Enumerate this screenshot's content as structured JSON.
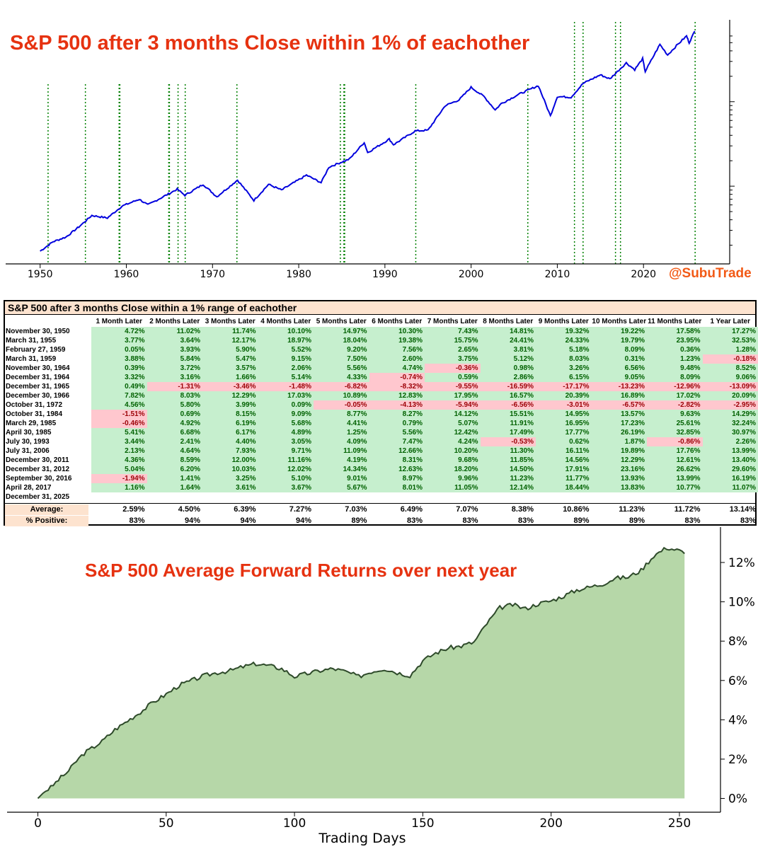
{
  "chart_data": [
    {
      "type": "line",
      "title": "S&P 500 after 3 months Close within 1% of eachother",
      "watermark": "@SubuTrade",
      "x_ticks": [
        1950,
        1960,
        1970,
        1980,
        1990,
        2000,
        2010,
        2020
      ],
      "xlim": [
        1946,
        2030
      ],
      "y_scale": "log",
      "line_color": "#0000dd",
      "vline_color": "#008000",
      "series": [
        {
          "points": [
            [
              1950.0,
              17
            ],
            [
              1951.5,
              22
            ],
            [
              1953,
              25
            ],
            [
              1954.5,
              33
            ],
            [
              1956,
              45
            ],
            [
              1957.8,
              42
            ],
            [
              1959.5,
              58
            ],
            [
              1961.5,
              70
            ],
            [
              1962.5,
              60
            ],
            [
              1965.9,
              92
            ],
            [
              1966.8,
              78
            ],
            [
              1968.9,
              105
            ],
            [
              1970.5,
              75
            ],
            [
              1972.9,
              118
            ],
            [
              1974.8,
              68
            ],
            [
              1976.5,
              105
            ],
            [
              1978,
              90
            ],
            [
              1980.9,
              135
            ],
            [
              1982.6,
              110
            ],
            [
              1983.5,
              168
            ],
            [
              1985.9,
              210
            ],
            [
              1987.6,
              330
            ],
            [
              1988,
              250
            ],
            [
              1990.5,
              360
            ],
            [
              1991,
              310
            ],
            [
              1993.5,
              450
            ],
            [
              1995,
              460
            ],
            [
              1997,
              900
            ],
            [
              1998.6,
              1050
            ],
            [
              2000.0,
              1480
            ],
            [
              2001.5,
              1150
            ],
            [
              2002.8,
              800
            ],
            [
              2003.5,
              950
            ],
            [
              2005.5,
              1220
            ],
            [
              2007.8,
              1550
            ],
            [
              2009.2,
              680
            ],
            [
              2010,
              1150
            ],
            [
              2011.6,
              1130
            ],
            [
              2013,
              1650
            ],
            [
              2015,
              2080
            ],
            [
              2016.1,
              1860
            ],
            [
              2018,
              2880
            ],
            [
              2018.98,
              2400
            ],
            [
              2019.9,
              3230
            ],
            [
              2020.2,
              2280
            ],
            [
              2021.9,
              4770
            ],
            [
              2022.8,
              3580
            ],
            [
              2024,
              4800
            ],
            [
              2025.0,
              6000
            ],
            [
              2025.3,
              5000
            ],
            [
              2025.95,
              6850
            ]
          ]
        }
      ],
      "vline_dates": [
        1950.92,
        1955.25,
        1959.16,
        1959.25,
        1964.92,
        1965.0,
        1966.0,
        1966.83,
        1972.83,
        1984.83,
        1985.24,
        1985.33,
        1993.58,
        2006.58,
        2011.99,
        2012.99,
        2016.75,
        2017.33,
        2025.99
      ]
    },
    {
      "type": "table",
      "title": "S&P 500 after 3 months Close within a 1% range of eachother",
      "columns": [
        "1 Month Later",
        "2 Months Later",
        "3 Months Later",
        "4 Months Later",
        "5 Months Later",
        "6 Months Later",
        "7 Months Later",
        "8 Months Later",
        "9 Months Later",
        "10 Months Later",
        "11 Months Later",
        "1 Year Later"
      ],
      "rows": [
        {
          "date": "November 30, 1950",
          "values": [
            "4.72%",
            "11.02%",
            "11.74%",
            "10.10%",
            "14.97%",
            "10.30%",
            "7.43%",
            "14.81%",
            "19.32%",
            "19.22%",
            "17.58%",
            "17.27%"
          ]
        },
        {
          "date": "March 31, 1955",
          "values": [
            "3.77%",
            "3.64%",
            "12.17%",
            "18.97%",
            "18.04%",
            "19.38%",
            "15.75%",
            "24.41%",
            "24.33%",
            "19.79%",
            "23.95%",
            "32.53%"
          ]
        },
        {
          "date": "February 27, 1959",
          "values": [
            "0.05%",
            "3.93%",
            "5.90%",
            "5.52%",
            "9.20%",
            "7.56%",
            "2.65%",
            "3.81%",
            "5.18%",
            "8.09%",
            "0.36%",
            "1.28%"
          ]
        },
        {
          "date": "March 31, 1959",
          "values": [
            "3.88%",
            "5.84%",
            "5.47%",
            "9.15%",
            "7.50%",
            "2.60%",
            "3.75%",
            "5.12%",
            "8.03%",
            "0.31%",
            "1.23%",
            "-0.18%"
          ]
        },
        {
          "date": "November 30, 1964",
          "values": [
            "0.39%",
            "3.72%",
            "3.57%",
            "2.06%",
            "5.56%",
            "4.74%",
            "-0.36%",
            "0.98%",
            "3.26%",
            "6.56%",
            "9.48%",
            "8.52%"
          ]
        },
        {
          "date": "December 31, 1964",
          "values": [
            "3.32%",
            "3.16%",
            "1.66%",
            "5.14%",
            "4.33%",
            "-0.74%",
            "0.59%",
            "2.86%",
            "6.15%",
            "9.05%",
            "8.09%",
            "9.06%"
          ]
        },
        {
          "date": "December 31, 1965",
          "values": [
            "0.49%",
            "-1.31%",
            "-3.46%",
            "-1.48%",
            "-6.82%",
            "-8.32%",
            "-9.55%",
            "-16.59%",
            "-17.17%",
            "-13.23%",
            "-12.96%",
            "-13.09%"
          ]
        },
        {
          "date": "December 30, 1966",
          "values": [
            "7.82%",
            "8.03%",
            "12.29%",
            "17.03%",
            "10.89%",
            "12.83%",
            "17.95%",
            "16.57%",
            "20.39%",
            "16.89%",
            "17.02%",
            "20.09%"
          ]
        },
        {
          "date": "October 31, 1972",
          "values": [
            "4.56%",
            "5.80%",
            "3.99%",
            "0.09%",
            "-0.05%",
            "-4.13%",
            "-5.94%",
            "-6.56%",
            "-3.01%",
            "-6.57%",
            "-2.82%",
            "-2.95%"
          ]
        },
        {
          "date": "October 31, 1984",
          "values": [
            "-1.51%",
            "0.69%",
            "8.15%",
            "9.09%",
            "8.77%",
            "8.27%",
            "14.12%",
            "15.51%",
            "14.95%",
            "13.57%",
            "9.63%",
            "14.29%"
          ]
        },
        {
          "date": "March 29, 1985",
          "values": [
            "-0.46%",
            "4.92%",
            "6.19%",
            "5.68%",
            "4.41%",
            "0.79%",
            "5.07%",
            "11.91%",
            "16.95%",
            "17.23%",
            "25.61%",
            "32.24%"
          ]
        },
        {
          "date": "April 30, 1985",
          "values": [
            "5.41%",
            "6.68%",
            "6.17%",
            "4.89%",
            "1.25%",
            "5.56%",
            "12.42%",
            "17.49%",
            "17.77%",
            "26.19%",
            "32.85%",
            "30.97%"
          ]
        },
        {
          "date": "July 30, 1993",
          "values": [
            "3.44%",
            "2.41%",
            "4.40%",
            "3.05%",
            "4.09%",
            "7.47%",
            "4.24%",
            "-0.53%",
            "0.62%",
            "1.87%",
            "-0.86%",
            "2.26%"
          ]
        },
        {
          "date": "July 31, 2006",
          "values": [
            "2.13%",
            "4.64%",
            "7.93%",
            "9.71%",
            "11.09%",
            "12.66%",
            "10.20%",
            "11.30%",
            "16.11%",
            "19.89%",
            "17.76%",
            "13.99%"
          ]
        },
        {
          "date": "December 30, 2011",
          "values": [
            "4.36%",
            "8.59%",
            "12.00%",
            "11.16%",
            "4.19%",
            "8.31%",
            "9.68%",
            "11.85%",
            "14.56%",
            "12.29%",
            "12.61%",
            "13.40%"
          ]
        },
        {
          "date": "December 31, 2012",
          "values": [
            "5.04%",
            "6.20%",
            "10.03%",
            "12.02%",
            "14.34%",
            "12.63%",
            "18.20%",
            "14.50%",
            "17.91%",
            "23.16%",
            "26.62%",
            "29.60%"
          ]
        },
        {
          "date": "September 30, 2016",
          "values": [
            "-1.94%",
            "1.41%",
            "3.25%",
            "5.10%",
            "9.01%",
            "8.97%",
            "9.96%",
            "11.23%",
            "11.77%",
            "13.93%",
            "13.99%",
            "16.19%"
          ]
        },
        {
          "date": "April 28, 2017",
          "values": [
            "1.16%",
            "1.64%",
            "3.61%",
            "3.67%",
            "5.67%",
            "8.01%",
            "11.05%",
            "12.14%",
            "18.44%",
            "13.83%",
            "10.77%",
            "11.07%"
          ]
        },
        {
          "date": "December 31, 2025",
          "values": [
            "",
            "",
            "",
            "",
            "",
            "",
            "",
            "",
            "",
            "",
            "",
            ""
          ]
        }
      ],
      "summary": [
        {
          "label": "Average:",
          "values": [
            "2.59%",
            "4.50%",
            "6.39%",
            "7.27%",
            "7.03%",
            "6.49%",
            "7.07%",
            "8.38%",
            "10.86%",
            "11.23%",
            "11.72%",
            "13.14%"
          ]
        },
        {
          "label": "% Positive:",
          "values": [
            "83%",
            "94%",
            "94%",
            "94%",
            "89%",
            "83%",
            "83%",
            "83%",
            "89%",
            "89%",
            "83%",
            "83%"
          ]
        }
      ],
      "positive_bg": "#c6efce",
      "negative_bg": "#ffc7ce",
      "header_bg": "#fde3cf"
    },
    {
      "type": "area",
      "title": "S&P 500 Average Forward Returns over next year",
      "xlabel": "Trading Days",
      "x_ticks": [
        0,
        50,
        100,
        150,
        200,
        250
      ],
      "y_ticks": [
        "0%",
        "2%",
        "4%",
        "6%",
        "8%",
        "10%",
        "12%"
      ],
      "xlim": [
        -12,
        266
      ],
      "ylim": [
        -0.7,
        13.8
      ],
      "fill_color": "#b6d7a8",
      "line_color": "#2e4a2a",
      "series": [
        {
          "points": [
            [
              0,
              0
            ],
            [
              3,
              0.4
            ],
            [
              5,
              0.55
            ],
            [
              8,
              0.95
            ],
            [
              12,
              1.4
            ],
            [
              15,
              1.9
            ],
            [
              18,
              2.3
            ],
            [
              21,
              2.55
            ],
            [
              25,
              2.9
            ],
            [
              30,
              3.5
            ],
            [
              35,
              3.95
            ],
            [
              40,
              4.4
            ],
            [
              45,
              4.9
            ],
            [
              50,
              5.3
            ],
            [
              55,
              5.75
            ],
            [
              60,
              6.0
            ],
            [
              65,
              6.25
            ],
            [
              70,
              6.4
            ],
            [
              75,
              6.5
            ],
            [
              80,
              6.7
            ],
            [
              85,
              6.85
            ],
            [
              90,
              6.75
            ],
            [
              95,
              6.6
            ],
            [
              100,
              6.2
            ],
            [
              105,
              6.35
            ],
            [
              110,
              6.5
            ],
            [
              115,
              6.6
            ],
            [
              120,
              6.45
            ],
            [
              125,
              6.2
            ],
            [
              130,
              6.45
            ],
            [
              135,
              6.6
            ],
            [
              140,
              6.4
            ],
            [
              145,
              6.25
            ],
            [
              150,
              7.0
            ],
            [
              155,
              7.4
            ],
            [
              160,
              7.65
            ],
            [
              165,
              7.75
            ],
            [
              170,
              7.95
            ],
            [
              175,
              8.9
            ],
            [
              180,
              9.7
            ],
            [
              185,
              9.85
            ],
            [
              190,
              9.65
            ],
            [
              195,
              9.9
            ],
            [
              200,
              10.05
            ],
            [
              205,
              10.3
            ],
            [
              210,
              10.6
            ],
            [
              215,
              10.75
            ],
            [
              220,
              10.9
            ],
            [
              225,
              11.2
            ],
            [
              230,
              11.25
            ],
            [
              235,
              11.6
            ],
            [
              240,
              12.35
            ],
            [
              245,
              12.75
            ],
            [
              250,
              12.6
            ],
            [
              252,
              12.45
            ]
          ]
        }
      ]
    }
  ]
}
